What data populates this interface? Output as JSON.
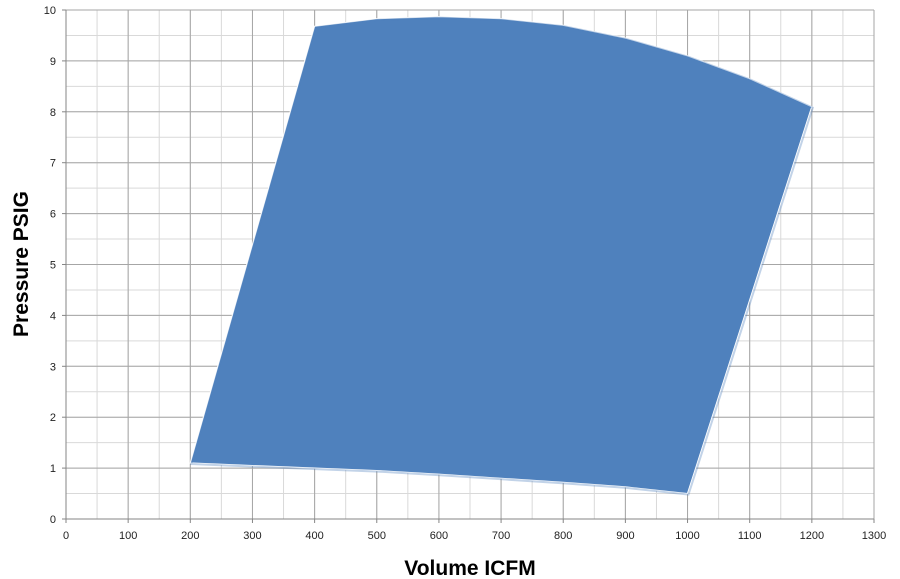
{
  "chart_data": {
    "type": "area",
    "title": "",
    "xlabel": "Volume ICFM",
    "ylabel": "Pressure PSIG",
    "xlim": [
      0,
      1300
    ],
    "ylim": [
      0,
      10
    ],
    "x_ticks": [
      0,
      100,
      200,
      300,
      400,
      500,
      600,
      700,
      800,
      900,
      1000,
      1100,
      1200,
      1300
    ],
    "y_ticks": [
      0,
      1,
      2,
      3,
      4,
      5,
      6,
      7,
      8,
      9,
      10
    ],
    "x_minor_step": 50,
    "y_minor_step": 0.5,
    "grid": true,
    "fill_color": "#4F81BD",
    "polygon": [
      {
        "x": 200,
        "y": 1.1
      },
      {
        "x": 300,
        "y": 1.05
      },
      {
        "x": 400,
        "y": 1.0
      },
      {
        "x": 500,
        "y": 0.95
      },
      {
        "x": 600,
        "y": 0.88
      },
      {
        "x": 700,
        "y": 0.8
      },
      {
        "x": 800,
        "y": 0.72
      },
      {
        "x": 900,
        "y": 0.63
      },
      {
        "x": 1000,
        "y": 0.5
      },
      {
        "x": 1200,
        "y": 8.1
      },
      {
        "x": 1100,
        "y": 8.65
      },
      {
        "x": 1000,
        "y": 9.1
      },
      {
        "x": 900,
        "y": 9.45
      },
      {
        "x": 800,
        "y": 9.7
      },
      {
        "x": 700,
        "y": 9.83
      },
      {
        "x": 600,
        "y": 9.87
      },
      {
        "x": 500,
        "y": 9.83
      },
      {
        "x": 400,
        "y": 9.68
      }
    ]
  }
}
